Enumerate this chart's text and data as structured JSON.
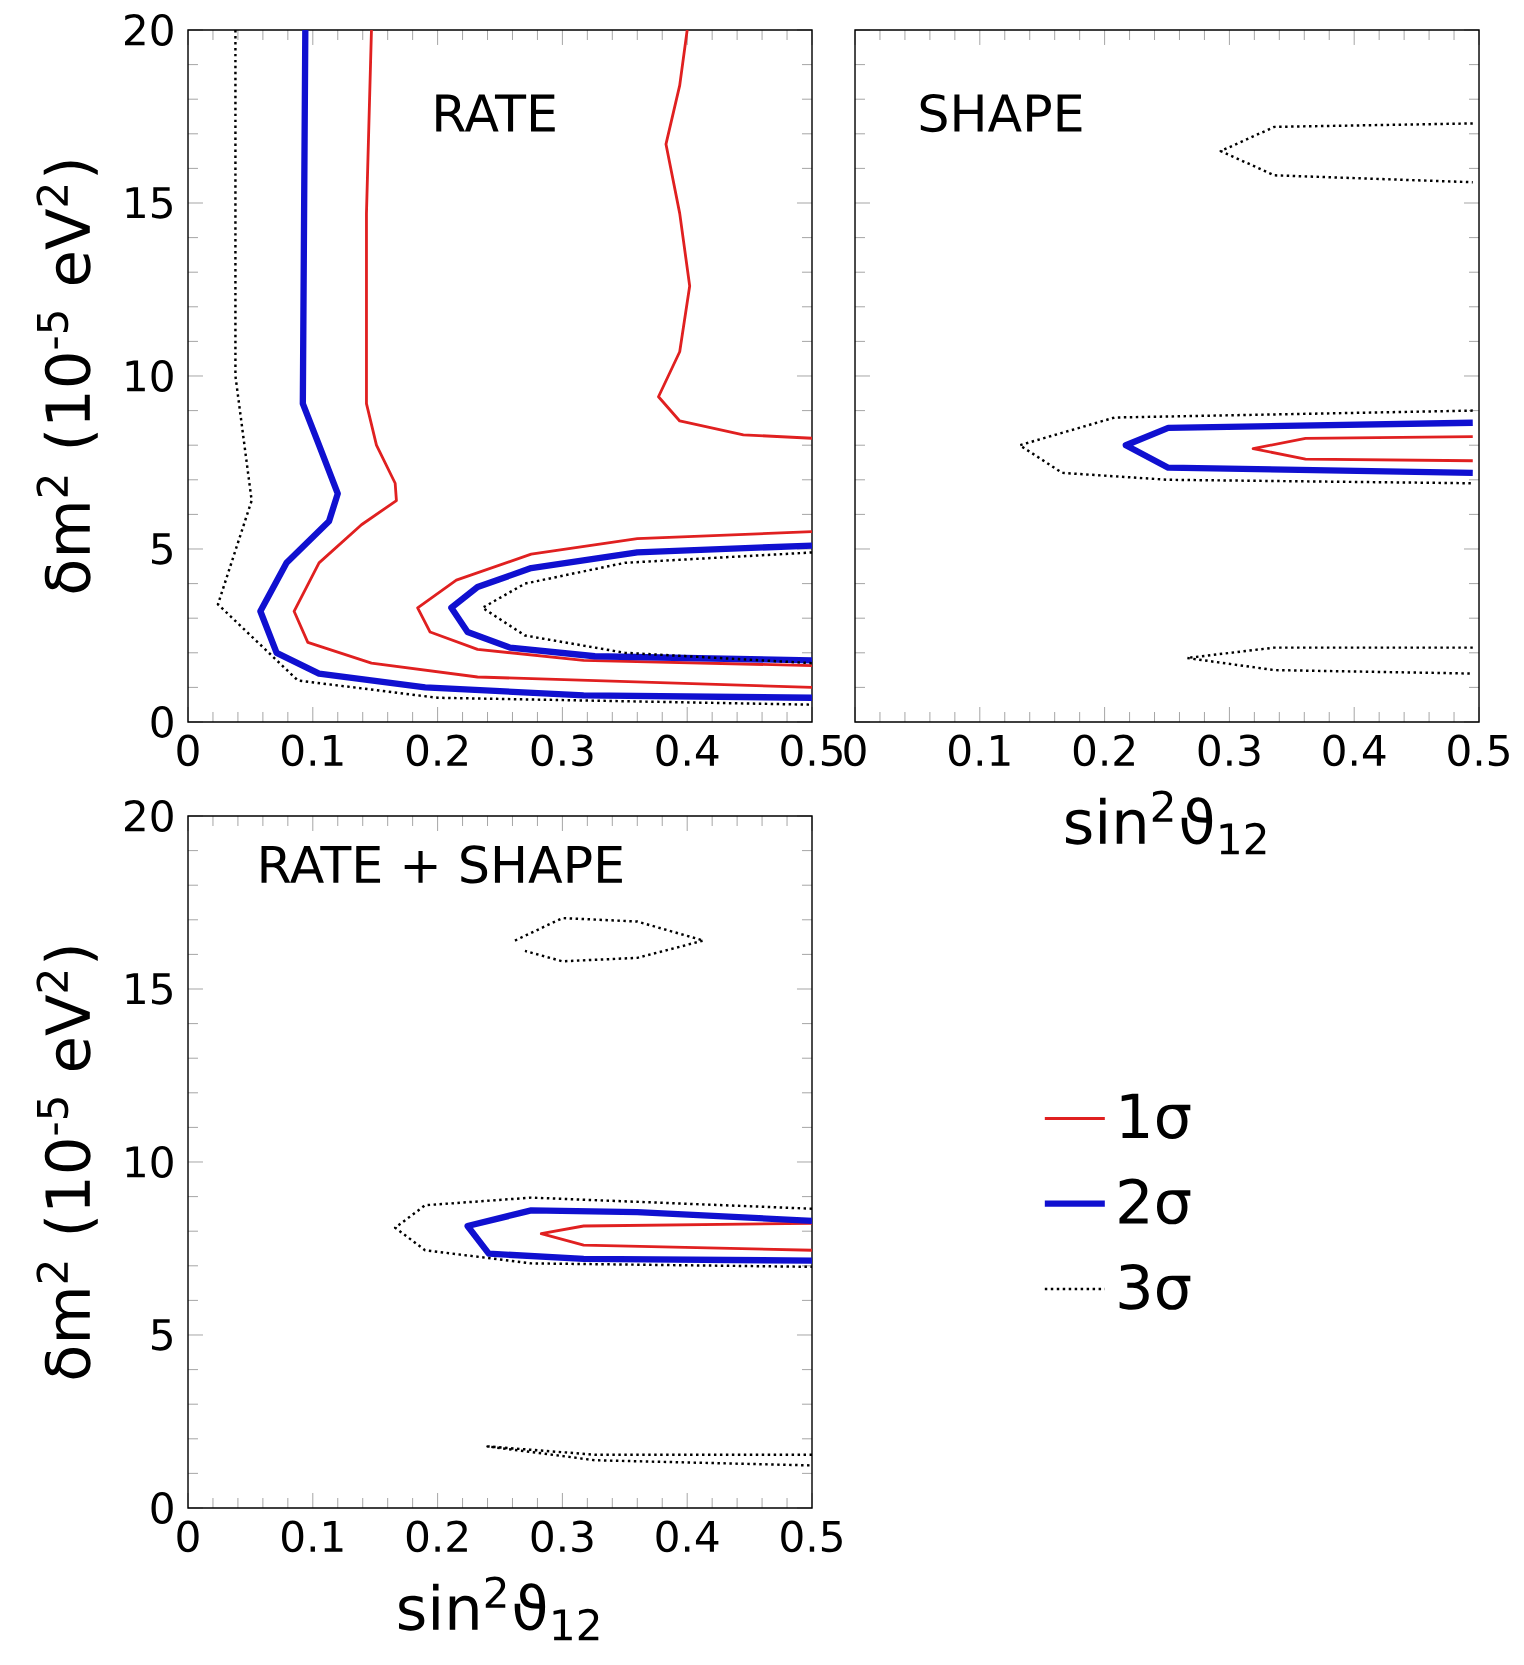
{
  "chart_data": [
    {
      "type": "line",
      "ylabel": "δm$^{2}$  (10$^{-5}$ eV$^{2}$)",
      "annotations": [
        "RATE"
      ],
      "xlim": [
        0,
        0.5
      ],
      "ylim": [
        0,
        20
      ],
      "xticks": [
        0,
        0.1,
        0.2,
        0.3,
        0.4,
        0.5
      ],
      "yticks": [
        0,
        5,
        10,
        15,
        20
      ],
      "series": [
        {
          "color": "#e02020",
          "line_style": "solid",
          "x": [
            0.147,
            0.143,
            0.143,
            0.151,
            0.166,
            0.167,
            0.139,
            0.105,
            0.085,
            0.096,
            0.147,
            0.232,
            0.5
          ],
          "values": [
            20,
            14.7,
            9.2,
            8.0,
            6.9,
            6.4,
            5.7,
            4.6,
            3.2,
            2.3,
            1.7,
            1.3,
            1.0
          ]
        },
        {
          "color": "#1010d0",
          "line_style": "solid",
          "x": [
            0.094,
            0.092,
            0.105,
            0.12,
            0.113,
            0.079,
            0.058,
            0.071,
            0.105,
            0.19,
            0.317,
            0.5
          ],
          "values": [
            20,
            9.2,
            8.0,
            6.6,
            5.8,
            4.6,
            3.2,
            2.0,
            1.4,
            1.0,
            0.77,
            0.7
          ]
        },
        {
          "color": "#000000",
          "line_style": "dotted",
          "x": [
            0.038,
            0.038,
            0.051,
            0.024,
            0.088,
            0.2,
            0.5
          ],
          "values": [
            20,
            10,
            6.4,
            3.4,
            1.2,
            0.7,
            0.5
          ]
        },
        {
          "color": "#e02020",
          "line_style": "solid",
          "x": [
            0.4,
            0.394,
            0.383,
            0.394,
            0.402,
            0.394,
            0.377,
            0.394,
            0.445,
            0.5
          ],
          "values": [
            20,
            18.4,
            16.7,
            14.7,
            12.6,
            10.7,
            9.4,
            8.7,
            8.3,
            8.2
          ]
        },
        {
          "color": "#e02020",
          "line_style": "solid",
          "x": [
            0.5,
            0.36,
            0.275,
            0.215,
            0.184,
            0.194,
            0.232,
            0.317,
            0.5
          ],
          "values": [
            5.5,
            5.3,
            4.85,
            4.1,
            3.3,
            2.6,
            2.1,
            1.78,
            1.63
          ]
        },
        {
          "color": "#1010d0",
          "line_style": "solid",
          "x": [
            0.5,
            0.36,
            0.275,
            0.232,
            0.211,
            0.224,
            0.258,
            0.326,
            0.5
          ],
          "values": [
            5.1,
            4.9,
            4.45,
            3.9,
            3.3,
            2.6,
            2.15,
            1.9,
            1.78
          ]
        },
        {
          "color": "#000000",
          "line_style": "dotted",
          "x": [
            0.5,
            0.35,
            0.27,
            0.236,
            0.27,
            0.35,
            0.5
          ],
          "values": [
            4.9,
            4.6,
            4.0,
            3.3,
            2.5,
            2.0,
            1.7
          ]
        }
      ]
    },
    {
      "type": "line",
      "xlabel": "sin$^{2}$ϑ$_{12}$",
      "annotations": [
        "SHAPE"
      ],
      "tick_labels": "x",
      "xlim": [
        0,
        0.5
      ],
      "ylim": [
        0,
        20
      ],
      "xticks": [
        0,
        0.1,
        0.2,
        0.3,
        0.4,
        0.5
      ],
      "yticks": [
        0,
        5,
        10,
        15,
        20
      ],
      "series": [
        {
          "color": "#e02020",
          "line_style": "solid",
          "x": [
            0.495,
            0.361,
            0.319,
            0.361,
            0.495
          ],
          "values": [
            8.25,
            8.2,
            7.9,
            7.6,
            7.55
          ]
        },
        {
          "color": "#1010d0",
          "line_style": "solid",
          "x": [
            0.495,
            0.251,
            0.217,
            0.251,
            0.495
          ],
          "values": [
            8.65,
            8.5,
            8.0,
            7.35,
            7.2
          ]
        },
        {
          "color": "#000000",
          "line_style": "dotted",
          "x": [
            0.495,
            0.208,
            0.132,
            0.166,
            0.251,
            0.495
          ],
          "values": [
            9.0,
            8.8,
            8.0,
            7.2,
            7.0,
            6.9
          ]
        },
        {
          "color": "#000000",
          "line_style": "dotted",
          "x": [
            0.495,
            0.336,
            0.293,
            0.336,
            0.495
          ],
          "values": [
            17.3,
            17.2,
            16.5,
            15.8,
            15.6
          ]
        },
        {
          "color": "#000000",
          "line_style": "dotted",
          "x": [
            0.495,
            0.336,
            0.266,
            0.336,
            0.495
          ],
          "values": [
            2.15,
            2.15,
            1.85,
            1.5,
            1.4
          ]
        }
      ]
    },
    {
      "type": "line",
      "xlabel": "sin$^{2}$ϑ$_{12}$",
      "ylabel": "δm$^{2}$  (10$^{-5}$ eV$^{2}$)",
      "annotations": [
        "RATE  + SHAPE"
      ],
      "legend": "right",
      "xlim": [
        0,
        0.5
      ],
      "ylim": [
        0,
        20
      ],
      "xticks": [
        0,
        0.1,
        0.2,
        0.3,
        0.4,
        0.5
      ],
      "yticks": [
        0,
        5,
        10,
        15,
        20
      ],
      "series": [
        {
          "name": "1σ",
          "color": "#e02020",
          "line_style": "solid",
          "x": [
            0.5,
            0.317,
            0.283,
            0.317,
            0.5
          ],
          "values": [
            8.23,
            8.15,
            7.93,
            7.6,
            7.45
          ]
        },
        {
          "name": "2σ",
          "color": "#1010d0",
          "line_style": "solid",
          "x": [
            0.5,
            0.36,
            0.275,
            0.224,
            0.241,
            0.317,
            0.5
          ],
          "values": [
            8.3,
            8.55,
            8.6,
            8.15,
            7.35,
            7.2,
            7.15
          ]
        },
        {
          "name": "3σ",
          "color": "#000000",
          "line_style": "dotted",
          "x": [
            0.5,
            0.275,
            0.19,
            0.166,
            0.19,
            0.275,
            0.5
          ],
          "values": [
            8.65,
            8.97,
            8.75,
            8.1,
            7.45,
            7.07,
            6.97
          ]
        },
        {
          "color": "#000000",
          "line_style": "dotted",
          "x": [
            0.262,
            0.3,
            0.36,
            0.413,
            0.36,
            0.3,
            0.27
          ],
          "values": [
            16.4,
            17.05,
            16.95,
            16.4,
            15.9,
            15.8,
            16.1
          ]
        },
        {
          "color": "#000000",
          "line_style": "dotted",
          "x": [
            0.5,
            0.326,
            0.24,
            0.326,
            0.5
          ],
          "values": [
            1.54,
            1.54,
            1.78,
            1.38,
            1.23
          ]
        }
      ]
    }
  ]
}
